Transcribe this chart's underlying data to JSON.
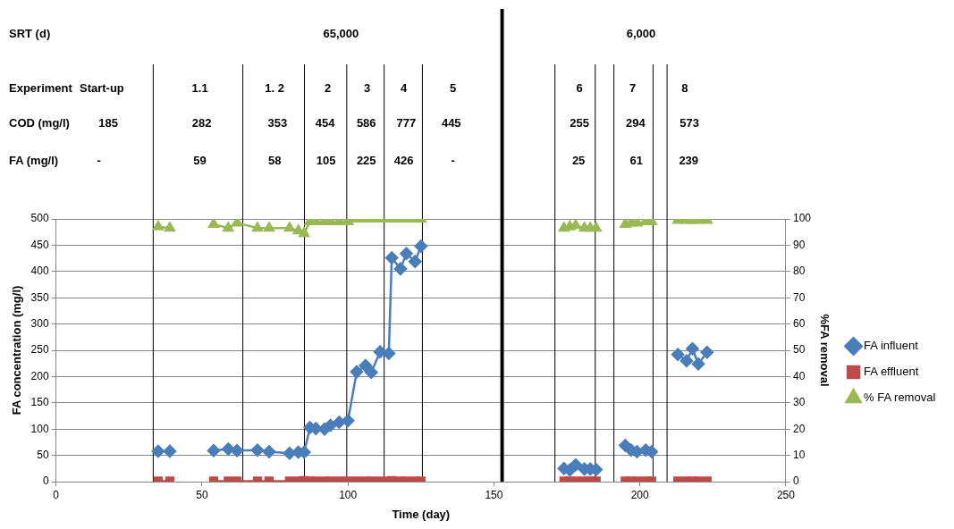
{
  "chart_data": {
    "type": "line",
    "xlabel": "Time (day)",
    "ylabel": "FA concentration (mg/l)",
    "y2label": "%FA removal",
    "x": [
      35,
      39,
      46,
      54,
      59,
      62,
      69,
      73,
      80,
      83,
      85,
      87,
      89,
      92,
      94,
      97,
      100,
      103,
      106,
      108,
      111,
      114,
      115,
      118,
      120,
      123,
      125,
      150,
      174,
      176,
      178,
      181,
      183,
      185,
      190,
      195,
      197,
      199,
      202,
      204,
      208,
      213,
      216,
      218,
      220,
      223
    ],
    "series": [
      {
        "name": "FA influent",
        "color": "#4a7ebb",
        "marker": "diamond",
        "values": [
          58,
          58,
          null,
          59,
          62,
          59,
          60,
          57,
          54,
          56,
          56,
          103,
          101,
          100,
          107,
          113,
          116,
          209,
          221,
          208,
          247,
          244,
          426,
          405,
          434,
          419,
          448,
          null,
          25,
          22,
          32,
          24,
          24,
          23,
          null,
          69,
          60,
          57,
          60,
          57,
          null,
          242,
          230,
          253,
          224,
          246
        ]
      },
      {
        "name": "FA effluent",
        "color": "#be4b48",
        "marker": "square",
        "values": [
          1,
          1,
          null,
          1,
          1,
          1,
          1,
          1,
          1,
          1,
          2,
          1,
          1,
          1,
          1,
          1,
          1,
          1,
          1,
          1,
          1,
          1,
          2,
          1,
          1,
          1,
          1,
          null,
          1,
          1,
          1,
          1,
          1,
          1,
          null,
          1,
          1,
          1,
          1,
          1,
          null,
          1,
          1,
          1,
          1,
          1
        ]
      },
      {
        "name": "% FA removal",
        "color": "#98b954",
        "marker": "triangle",
        "axis": "y2",
        "values": [
          97,
          96.5,
          null,
          98,
          96.5,
          98.5,
          96.5,
          96.5,
          96.5,
          95.5,
          94.5,
          99,
          99,
          99,
          99,
          99,
          99,
          100,
          100,
          100,
          100,
          100,
          100,
          100,
          100,
          100,
          100,
          null,
          96.5,
          97,
          97.5,
          96.5,
          96.5,
          96.5,
          null,
          98,
          98.5,
          98.5,
          99,
          99,
          null,
          99.5,
          99.5,
          99.5,
          99.5,
          99.5
        ]
      }
    ],
    "xlim": [
      0,
      250
    ],
    "xticks": [
      0,
      50,
      100,
      150,
      200,
      250
    ],
    "ylim": [
      0,
      500
    ],
    "yticks": [
      0,
      50,
      100,
      150,
      200,
      250,
      300,
      350,
      400,
      450,
      500
    ],
    "y2lim": [
      0,
      100
    ],
    "y2ticks": [
      0,
      10,
      20,
      30,
      40,
      50,
      60,
      70,
      80,
      90,
      100
    ],
    "grid": "y",
    "legend": "right",
    "line_style": "solid",
    "ref_lines": [
      {
        "axis": "x",
        "value": 33.3,
        "color": "#000000"
      },
      {
        "axis": "x",
        "value": 64,
        "color": "#000000"
      },
      {
        "axis": "x",
        "value": 85.1,
        "color": "#000000"
      },
      {
        "axis": "x",
        "value": 99.6,
        "color": "#000000"
      },
      {
        "axis": "x",
        "value": 112.4,
        "color": "#000000"
      },
      {
        "axis": "x",
        "value": 125.5,
        "color": "#000000"
      },
      {
        "axis": "x",
        "value": 170.9,
        "color": "#000000"
      },
      {
        "axis": "x",
        "value": 184.7,
        "color": "#000000"
      },
      {
        "axis": "x",
        "value": 191.1,
        "color": "#000000"
      },
      {
        "axis": "x",
        "value": 204.5,
        "color": "#000000"
      },
      {
        "axis": "x",
        "value": 209.3,
        "color": "#000000"
      }
    ],
    "bands": [
      {
        "axis": "x",
        "from": 152.2,
        "to": 153.4,
        "color": "#000000"
      }
    ],
    "annotations": [
      "SRT (d)",
      "65,000",
      "6,000",
      "Experiment",
      "Start-up",
      "1.1",
      "1. 2",
      "2",
      "3",
      "4",
      "5",
      "6",
      "7",
      "8",
      "COD (mg/l)",
      "185",
      "282",
      "353",
      "454",
      "586",
      "777",
      "445",
      "255",
      "294",
      "573",
      "FA (mg/l)",
      "-",
      "59",
      "58",
      "105",
      "225",
      "426",
      "-",
      "25",
      "61",
      "239"
    ]
  }
}
